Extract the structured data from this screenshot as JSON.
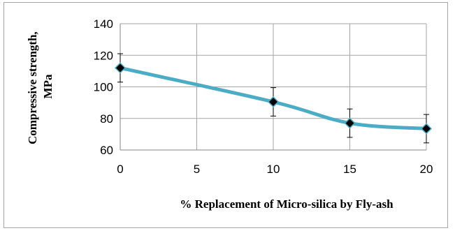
{
  "chart_data": {
    "type": "line",
    "xlabel": "% Replacement of Micro-silica by Fly-ash",
    "ylabel_line1": "Compressive strength,",
    "ylabel_line2": "MPa",
    "xlim": [
      0,
      20
    ],
    "ylim": [
      60,
      140
    ],
    "x_ticks": [
      0,
      5,
      10,
      15,
      20
    ],
    "y_ticks": [
      60,
      80,
      100,
      120,
      140
    ],
    "grid": true,
    "series": [
      {
        "x": [
          0,
          10,
          15,
          20
        ],
        "values": [
          112,
          90.5,
          77,
          73.5
        ],
        "error": [
          9,
          9,
          9,
          9
        ],
        "line_color": "#4bacc6",
        "marker_color": "#000000"
      }
    ]
  }
}
